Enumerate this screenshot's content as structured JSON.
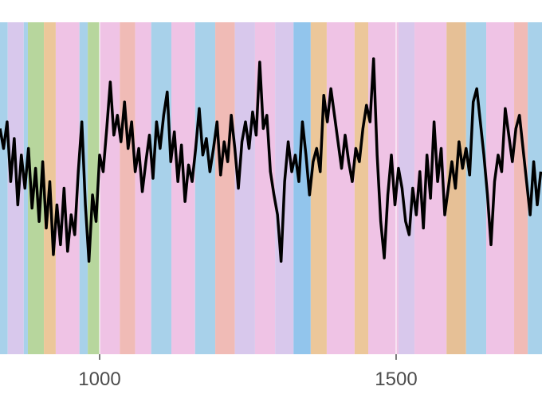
{
  "chart_data": {
    "type": "line",
    "xlim": [
      832,
      1746
    ],
    "xticks": [
      1000,
      1500
    ],
    "ylim": [
      0,
      100
    ],
    "grid": true,
    "color": "#000000",
    "x": [
      832,
      838,
      844,
      850,
      856,
      862,
      868,
      874,
      880,
      886,
      892,
      898,
      904,
      910,
      916,
      922,
      928,
      934,
      940,
      946,
      952,
      958,
      964,
      970,
      976,
      982,
      988,
      994,
      1000,
      1006,
      1012,
      1018,
      1024,
      1030,
      1036,
      1042,
      1048,
      1054,
      1060,
      1066,
      1072,
      1078,
      1084,
      1090,
      1096,
      1102,
      1108,
      1114,
      1120,
      1126,
      1132,
      1138,
      1144,
      1150,
      1156,
      1162,
      1168,
      1174,
      1180,
      1186,
      1192,
      1198,
      1204,
      1210,
      1216,
      1222,
      1228,
      1234,
      1240,
      1246,
      1252,
      1258,
      1264,
      1270,
      1276,
      1282,
      1288,
      1294,
      1300,
      1306,
      1312,
      1318,
      1324,
      1330,
      1336,
      1342,
      1348,
      1354,
      1360,
      1366,
      1372,
      1378,
      1384,
      1390,
      1396,
      1402,
      1408,
      1414,
      1420,
      1426,
      1432,
      1438,
      1444,
      1450,
      1456,
      1462,
      1468,
      1474,
      1480,
      1486,
      1492,
      1498,
      1504,
      1510,
      1516,
      1522,
      1528,
      1534,
      1540,
      1546,
      1552,
      1558,
      1564,
      1570,
      1576,
      1582,
      1588,
      1594,
      1600,
      1606,
      1612,
      1618,
      1624,
      1630,
      1636,
      1642,
      1648,
      1654,
      1660,
      1666,
      1672,
      1678,
      1684,
      1690,
      1696,
      1702,
      1708,
      1714,
      1720,
      1726,
      1732,
      1738,
      1744
    ],
    "values": [
      68,
      62,
      70,
      52,
      65,
      45,
      60,
      50,
      62,
      44,
      56,
      40,
      58,
      38,
      52,
      30,
      45,
      33,
      50,
      31,
      42,
      36,
      55,
      70,
      45,
      28,
      48,
      40,
      60,
      55,
      68,
      82,
      66,
      72,
      64,
      76,
      62,
      70,
      55,
      62,
      49,
      58,
      66,
      53,
      70,
      62,
      72,
      79,
      58,
      67,
      52,
      63,
      46,
      57,
      52,
      62,
      74,
      60,
      65,
      55,
      62,
      70,
      54,
      64,
      58,
      72,
      62,
      50,
      64,
      70,
      62,
      73,
      66,
      88,
      68,
      72,
      55,
      48,
      42,
      28,
      52,
      64,
      55,
      60,
      52,
      70,
      60,
      48,
      58,
      62,
      55,
      78,
      70,
      80,
      72,
      64,
      56,
      66,
      58,
      52,
      62,
      58,
      68,
      75,
      70,
      89,
      60,
      40,
      29,
      48,
      60,
      45,
      56,
      50,
      40,
      36,
      50,
      42,
      55,
      38,
      60,
      47,
      70,
      52,
      62,
      42,
      50,
      58,
      50,
      64,
      56,
      62,
      54,
      76,
      80,
      70,
      60,
      48,
      33,
      52,
      60,
      55,
      74,
      66,
      58,
      68,
      72,
      62,
      52,
      42,
      58,
      45,
      55
    ],
    "bands": [
      {
        "start": 832,
        "end": 845,
        "color": "#a8d1ea"
      },
      {
        "start": 845,
        "end": 872,
        "color": "#d8c8ec"
      },
      {
        "start": 872,
        "end": 879,
        "color": "#a8d1ea"
      },
      {
        "start": 879,
        "end": 906,
        "color": "#b7d69d"
      },
      {
        "start": 906,
        "end": 926,
        "color": "#ecc79a"
      },
      {
        "start": 926,
        "end": 966,
        "color": "#efc3e5"
      },
      {
        "start": 966,
        "end": 980,
        "color": "#a8d1ea"
      },
      {
        "start": 980,
        "end": 1000,
        "color": "#b7d69d"
      },
      {
        "start": 1000,
        "end": 1034,
        "color": "#efc3e5"
      },
      {
        "start": 1034,
        "end": 1060,
        "color": "#f0bbb6"
      },
      {
        "start": 1060,
        "end": 1087,
        "color": "#efc3e5"
      },
      {
        "start": 1087,
        "end": 1121,
        "color": "#a8d1ea"
      },
      {
        "start": 1121,
        "end": 1161,
        "color": "#efc3e5"
      },
      {
        "start": 1161,
        "end": 1195,
        "color": "#a8d1ea"
      },
      {
        "start": 1195,
        "end": 1228,
        "color": "#f0bbb6"
      },
      {
        "start": 1228,
        "end": 1262,
        "color": "#d8c8ec"
      },
      {
        "start": 1262,
        "end": 1296,
        "color": "#efc3e5"
      },
      {
        "start": 1296,
        "end": 1327,
        "color": "#d8c8ec"
      },
      {
        "start": 1327,
        "end": 1356,
        "color": "#92c5ec"
      },
      {
        "start": 1356,
        "end": 1383,
        "color": "#ecc79a"
      },
      {
        "start": 1383,
        "end": 1430,
        "color": "#efc3e5"
      },
      {
        "start": 1430,
        "end": 1453,
        "color": "#ecc79a"
      },
      {
        "start": 1453,
        "end": 1504,
        "color": "#efc3e5"
      },
      {
        "start": 1504,
        "end": 1531,
        "color": "#d8c8ec"
      },
      {
        "start": 1531,
        "end": 1585,
        "color": "#efc3e5"
      },
      {
        "start": 1585,
        "end": 1618,
        "color": "#e6c096"
      },
      {
        "start": 1618,
        "end": 1652,
        "color": "#a8d1ea"
      },
      {
        "start": 1652,
        "end": 1699,
        "color": "#efc3e5"
      },
      {
        "start": 1699,
        "end": 1722,
        "color": "#f0bbb6"
      },
      {
        "start": 1722,
        "end": 1746,
        "color": "#a8d1ea"
      }
    ]
  }
}
